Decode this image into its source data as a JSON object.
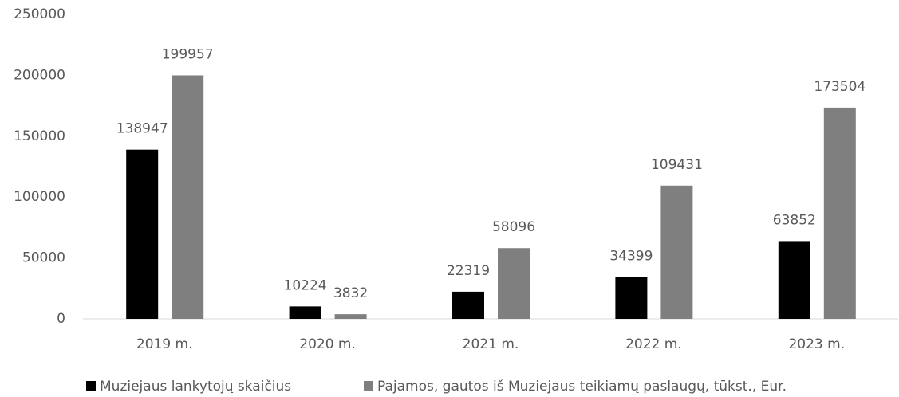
{
  "chart_data": {
    "type": "bar",
    "categories": [
      "2019 m.",
      "2020 m.",
      "2021 m.",
      "2022 m.",
      "2023 m."
    ],
    "series": [
      {
        "name": "Muziejaus lankytojų skaičius",
        "color": "#000000",
        "values": [
          138947,
          10224,
          22319,
          34399,
          63852
        ]
      },
      {
        "name": "Pajamos, gautos iš Muziejaus teikiamų paslaugų, tūkst., Eur.",
        "color": "#7f7f7f",
        "values": [
          199957,
          3832,
          58096,
          109431,
          173504
        ]
      }
    ],
    "ylim": [
      0,
      250000
    ],
    "yticks": [
      0,
      50000,
      100000,
      150000,
      200000,
      250000
    ],
    "grid": false
  }
}
